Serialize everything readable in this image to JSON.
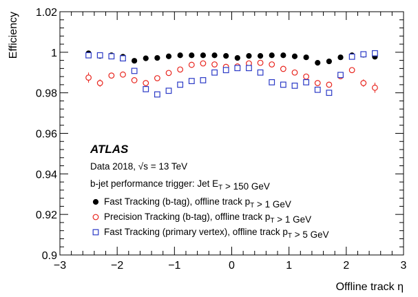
{
  "chart_data": {
    "type": "scatter",
    "xlabel": "Offline track η",
    "ylabel": "Efficiency",
    "xlim": [
      -3,
      3
    ],
    "ylim": [
      0.9,
      1.02
    ],
    "x_ticks": [
      "−3",
      "−2",
      "−1",
      "0",
      "1",
      "2",
      "3"
    ],
    "y_ticks": [
      "0.9",
      "0.92",
      "0.94",
      "0.96",
      "0.98",
      "1",
      "1.02"
    ],
    "annotations": {
      "experiment": "ATLAS",
      "dataset": "Data 2018, √s = 13 TeV",
      "trigger": "b-jet performance trigger: Jet E_T > 150 GeV"
    },
    "legend_placement": "bottom-left",
    "series": [
      {
        "name": "Fast Tracking (b-tag), offline track p_T > 1 GeV",
        "marker": "filled-circle",
        "color": "#000000",
        "x": [
          -2.5,
          -2.3,
          -2.1,
          -1.9,
          -1.7,
          -1.5,
          -1.3,
          -1.1,
          -0.9,
          -0.7,
          -0.5,
          -0.3,
          -0.1,
          0.1,
          0.3,
          0.5,
          0.7,
          0.9,
          1.1,
          1.3,
          1.5,
          1.7,
          1.9,
          2.1,
          2.3,
          2.5
        ],
        "y": [
          0.9995,
          0.9982,
          0.9985,
          0.9978,
          0.9958,
          0.997,
          0.9972,
          0.998,
          0.9985,
          0.9985,
          0.9985,
          0.9985,
          0.9982,
          0.9972,
          0.9982,
          0.9982,
          0.9985,
          0.9985,
          0.998,
          0.9975,
          0.9948,
          0.9955,
          0.9975,
          0.9985,
          0.9988,
          0.9978
        ],
        "yerr": [
          0.0008,
          0.0006,
          0.0005,
          0.0005,
          0.0005,
          0.0004,
          0.0004,
          0.0004,
          0.0004,
          0.0004,
          0.0004,
          0.0004,
          0.0004,
          0.0004,
          0.0004,
          0.0004,
          0.0004,
          0.0004,
          0.0004,
          0.0004,
          0.0005,
          0.0005,
          0.0005,
          0.0005,
          0.0006,
          0.0008
        ]
      },
      {
        "name": "Precision Tracking (b-tag), offline track p_T > 1 GeV",
        "marker": "open-circle",
        "color": "#e8231c",
        "x": [
          -2.5,
          -2.3,
          -2.1,
          -1.9,
          -1.7,
          -1.5,
          -1.3,
          -1.1,
          -0.9,
          -0.7,
          -0.5,
          -0.3,
          -0.1,
          0.1,
          0.3,
          0.5,
          0.7,
          0.9,
          1.1,
          1.3,
          1.5,
          1.7,
          1.9,
          2.1,
          2.3,
          2.5
        ],
        "y": [
          0.9875,
          0.9848,
          0.9885,
          0.989,
          0.9862,
          0.9848,
          0.9872,
          0.9898,
          0.9915,
          0.9938,
          0.9945,
          0.994,
          0.9928,
          0.993,
          0.9945,
          0.9948,
          0.994,
          0.9918,
          0.99,
          0.988,
          0.9848,
          0.984,
          0.9882,
          0.9912,
          0.9848,
          0.9825
        ],
        "yerr": [
          0.0025,
          0.0018,
          0.0012,
          0.001,
          0.001,
          0.0008,
          0.0007,
          0.0006,
          0.0005,
          0.0005,
          0.0005,
          0.0005,
          0.0005,
          0.0005,
          0.0005,
          0.0005,
          0.0005,
          0.0005,
          0.0006,
          0.0007,
          0.0008,
          0.001,
          0.0012,
          0.0012,
          0.0018,
          0.0025
        ]
      },
      {
        "name": "Fast Tracking (primary vertex), offline track p_T > 5 GeV",
        "marker": "open-square",
        "color": "#2a39c6",
        "x": [
          -2.5,
          -2.3,
          -2.1,
          -1.9,
          -1.7,
          -1.5,
          -1.3,
          -1.1,
          -0.9,
          -0.7,
          -0.5,
          -0.3,
          -0.1,
          0.1,
          0.3,
          0.5,
          0.7,
          0.9,
          1.1,
          1.3,
          1.5,
          1.7,
          1.9,
          2.1,
          2.3,
          2.5
        ],
        "y": [
          0.9985,
          0.9985,
          0.998,
          0.997,
          0.9908,
          0.9818,
          0.9792,
          0.981,
          0.984,
          0.9858,
          0.9862,
          0.99,
          0.9912,
          0.9922,
          0.9922,
          0.99,
          0.9852,
          0.984,
          0.9835,
          0.9852,
          0.9815,
          0.98,
          0.9888,
          0.9978,
          0.999,
          0.9995
        ],
        "yerr": [
          0.0008,
          0.0006,
          0.0005,
          0.0005,
          0.0008,
          0.0012,
          0.001,
          0.0008,
          0.0008,
          0.0006,
          0.0006,
          0.0006,
          0.0006,
          0.0006,
          0.0006,
          0.0006,
          0.0006,
          0.0008,
          0.0008,
          0.0008,
          0.0012,
          0.001,
          0.0008,
          0.0006,
          0.0006,
          0.0008
        ]
      }
    ]
  }
}
